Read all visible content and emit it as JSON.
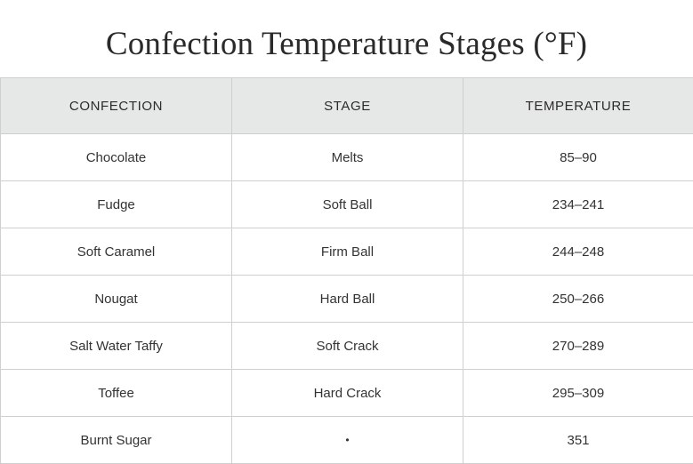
{
  "title": "Confection Temperature Stages (°F)",
  "table": {
    "headers": [
      "CONFECTION",
      "STAGE",
      "TEMPERATURE"
    ],
    "rows": [
      [
        "Chocolate",
        "Melts",
        "85–90"
      ],
      [
        "Fudge",
        "Soft Ball",
        "234–241"
      ],
      [
        "Soft Caramel",
        "Firm Ball",
        "244–248"
      ],
      [
        "Nougat",
        "Hard Ball",
        "250–266"
      ],
      [
        "Salt Water Taffy",
        "Soft Crack",
        "270–289"
      ],
      [
        "Toffee",
        "Hard Crack",
        "295–309"
      ],
      [
        "Burnt Sugar",
        "•",
        "351"
      ]
    ]
  }
}
